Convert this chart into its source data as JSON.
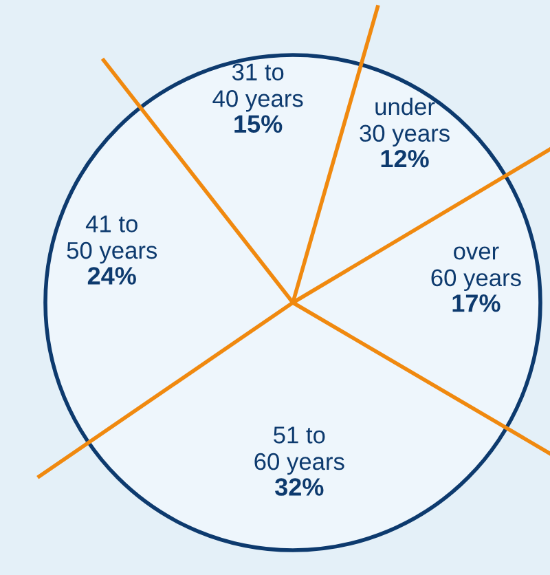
{
  "chart_data": {
    "type": "pie",
    "categories": [
      "under\n30 years",
      "over\n60 years",
      "51 to\n60 years",
      "41 to\n50 years",
      "31 to\n40 years"
    ],
    "values": [
      12,
      17,
      32,
      24,
      15
    ],
    "value_labels": [
      "12%",
      "17%",
      "32%",
      "24%",
      "15%"
    ],
    "colors": [
      "#eef6fc",
      "#eef6fc",
      "#eef6fc",
      "#eef6fc",
      "#eef6fc"
    ]
  }
}
